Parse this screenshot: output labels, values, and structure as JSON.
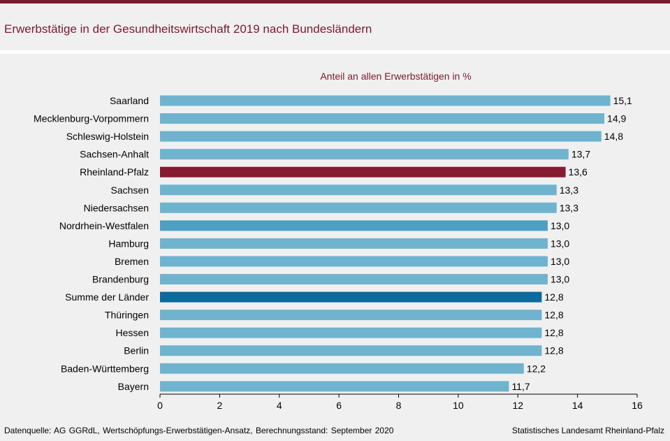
{
  "title": "Erwerbstätige in der Gesundheitswirtschaft 2019 nach Bundesländern",
  "source_note": "Datenquelle:  AG GGRdL, Wertschöpfungs-Erwerbstätigen-Ansatz,  Berechnungsstand:  September 2020",
  "publisher": "Statistisches Landesamt Rheinland-Pfalz",
  "chart_data": {
    "type": "bar",
    "orientation": "horizontal",
    "title": "Anteil an allen Erwerbstätigen in %",
    "categories": [
      "Saarland",
      "Mecklenburg-Vorpommern",
      "Schleswig-Holstein",
      "Sachsen-Anhalt",
      "Rheinland-Pfalz",
      "Sachsen",
      "Niedersachsen",
      "Nordrhein-Westfalen",
      "Hamburg",
      "Bremen",
      "Brandenburg",
      "Summe der Länder",
      "Thüringen",
      "Hessen",
      "Berlin",
      "Baden-Württemberg",
      "Bayern"
    ],
    "values": [
      15.1,
      14.9,
      14.8,
      13.7,
      13.6,
      13.3,
      13.3,
      13.0,
      13.0,
      13.0,
      13.0,
      12.8,
      12.8,
      12.8,
      12.8,
      12.2,
      11.7
    ],
    "value_labels": [
      "15,1",
      "14,9",
      "14,8",
      "13,7",
      "13,6",
      "13,3",
      "13,3",
      "13,0",
      "13,0",
      "13,0",
      "13,0",
      "12,8",
      "12,8",
      "12,8",
      "12,8",
      "12,2",
      "11,7"
    ],
    "bar_colors": [
      "#6fb3cf",
      "#6fb3cf",
      "#6fb3cf",
      "#6fb3cf",
      "#861a30",
      "#6fb3cf",
      "#6fb3cf",
      "#4d9fc4",
      "#6fb3cf",
      "#6fb3cf",
      "#6fb3cf",
      "#0b6b9c",
      "#6fb3cf",
      "#6fb3cf",
      "#6fb3cf",
      "#6fb3cf",
      "#6fb3cf"
    ],
    "xlim": [
      0,
      16
    ],
    "xticks": [
      0,
      2,
      4,
      6,
      8,
      10,
      12,
      14,
      16
    ],
    "grid": false,
    "colors": {
      "title": "#7b1a2e",
      "axis": "#000000",
      "text": "#000000"
    }
  }
}
